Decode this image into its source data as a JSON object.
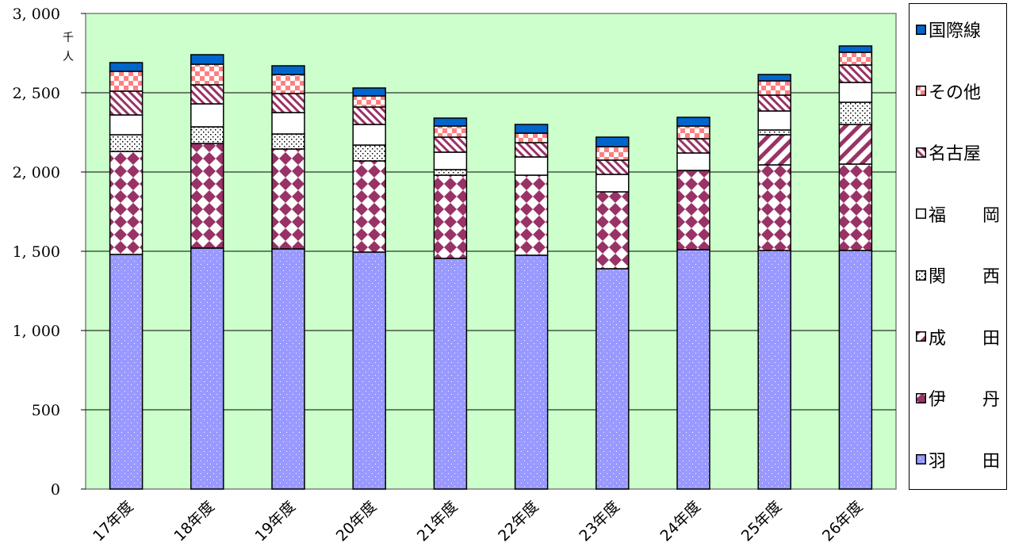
{
  "chart_data": {
    "type": "bar",
    "stacked": true,
    "unit": "千人",
    "categories": [
      "17年度",
      "18年度",
      "19年度",
      "20年度",
      "21年度",
      "22年度",
      "23年度",
      "24年度",
      "25年度",
      "26年度"
    ],
    "ylim": [
      0,
      3000
    ],
    "yticks": [
      "0",
      "500",
      "1, 000",
      "1, 500",
      "2, 000",
      "2, 500",
      "3, 000"
    ],
    "grid": true,
    "legend_position": "right",
    "series": [
      {
        "name": "羽　田",
        "color": "#9999ff",
        "values": [
          1480,
          1520,
          1515,
          1495,
          1455,
          1475,
          1390,
          1510,
          1505,
          1505
        ]
      },
      {
        "name": "伊　丹",
        "color": "#993366",
        "values": [
          650,
          660,
          630,
          575,
          525,
          505,
          485,
          500,
          540,
          545
        ]
      },
      {
        "name": "成　田",
        "color": "#993366",
        "values": [
          0,
          0,
          0,
          0,
          0,
          0,
          0,
          0,
          190,
          250
        ]
      },
      {
        "name": "関　西",
        "color": "#000000",
        "values": [
          105,
          105,
          95,
          100,
          35,
          0,
          0,
          0,
          30,
          140
        ]
      },
      {
        "name": "福　岡",
        "color": "#ffffff",
        "values": [
          125,
          145,
          135,
          130,
          110,
          115,
          110,
          110,
          120,
          125
        ]
      },
      {
        "name": "名古屋",
        "color": "#993366",
        "values": [
          150,
          120,
          120,
          110,
          95,
          90,
          90,
          90,
          100,
          110
        ]
      },
      {
        "name": "その他",
        "color": "#ff8080",
        "values": [
          125,
          130,
          120,
          70,
          70,
          60,
          85,
          80,
          90,
          80
        ]
      },
      {
        "name": "国際線",
        "color": "#0066cc",
        "values": [
          55,
          60,
          55,
          50,
          50,
          55,
          60,
          55,
          40,
          40
        ]
      }
    ]
  }
}
